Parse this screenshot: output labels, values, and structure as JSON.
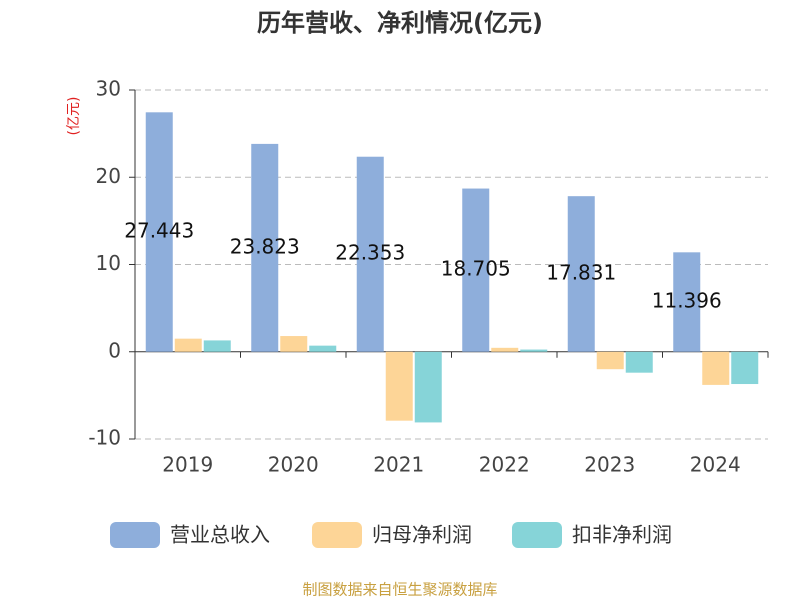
{
  "chart_data": {
    "type": "bar",
    "title": "历年营收、净利情况(亿元)",
    "y_label": "(亿元)",
    "categories": [
      "2019",
      "2020",
      "2021",
      "2022",
      "2023",
      "2024"
    ],
    "series": [
      {
        "name": "营业总收入",
        "color": "#8eaedb",
        "values": [
          27.443,
          23.823,
          22.353,
          18.705,
          17.831,
          11.396
        ],
        "show_labels": true
      },
      {
        "name": "归母净利润",
        "color": "#fdd597",
        "values": [
          1.5,
          1.8,
          -7.9,
          0.45,
          -2.0,
          -3.8
        ]
      },
      {
        "name": "扣非净利润",
        "color": "#86d4d8",
        "values": [
          1.3,
          0.7,
          -8.1,
          0.25,
          -2.4,
          -3.7
        ]
      }
    ],
    "ylim": [
      -10,
      30
    ],
    "yticks": [
      -10,
      0,
      10,
      20,
      30
    ],
    "grid": true,
    "source": "制图数据来自恒生聚源数据库"
  }
}
